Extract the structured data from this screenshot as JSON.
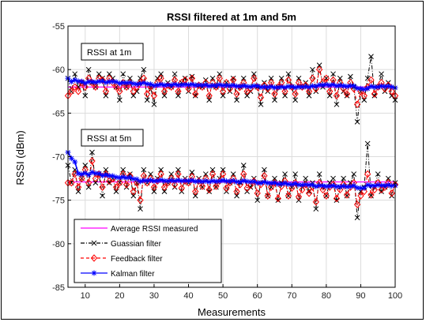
{
  "chart_data": {
    "type": "line",
    "title": "RSSI filtered at 1m and 5m",
    "xlabel": "Measurements",
    "ylabel": "RSSI (dBm)",
    "xlim": [
      5,
      100
    ],
    "ylim": [
      -85,
      -55
    ],
    "xticks": [
      "10",
      "20",
      "30",
      "40",
      "50",
      "60",
      "70",
      "80",
      "90",
      "100"
    ],
    "yticks": [
      "-55",
      "-60",
      "-65",
      "-70",
      "-75",
      "-80",
      "-85"
    ],
    "grid": true,
    "legend_position": "bottom-left",
    "annotations": [
      "RSSI at 1m",
      "RSSI at 5m"
    ],
    "series": [
      {
        "name": "Average RSSI measured",
        "color": "#ff00ff",
        "style": "solid",
        "marker": "none",
        "groups": {
          "1m": -62.0,
          "5m": -72.9
        }
      },
      {
        "name": "Guassian filter",
        "color": "#000000",
        "style": "dashdot",
        "marker": "x-star"
      },
      {
        "name": "Feedback filter",
        "color": "#ff0000",
        "style": "dashed",
        "marker": "diamond"
      },
      {
        "name": "Kalman filter",
        "color": "#0000ff",
        "style": "solid",
        "marker": "asterisk"
      }
    ],
    "x": [
      5,
      6,
      7,
      8,
      9,
      10,
      11,
      12,
      13,
      14,
      15,
      16,
      17,
      18,
      19,
      20,
      21,
      22,
      23,
      24,
      25,
      26,
      27,
      28,
      29,
      30,
      31,
      32,
      33,
      34,
      35,
      36,
      37,
      38,
      39,
      40,
      41,
      42,
      43,
      44,
      45,
      46,
      47,
      48,
      49,
      50,
      51,
      52,
      53,
      54,
      55,
      56,
      57,
      58,
      59,
      60,
      61,
      62,
      63,
      64,
      65,
      66,
      67,
      68,
      69,
      70,
      71,
      72,
      73,
      74,
      75,
      76,
      77,
      78,
      79,
      80,
      81,
      82,
      83,
      84,
      85,
      86,
      87,
      88,
      89,
      90,
      91,
      92,
      93,
      94,
      95,
      96,
      97,
      98,
      99,
      100
    ],
    "data_1m": {
      "gaussian": [
        -61,
        -62.5,
        -60.5,
        -62,
        -61.5,
        -63,
        -60,
        -61.5,
        -62,
        -60.5,
        -61,
        -63,
        -60.5,
        -61,
        -62,
        -63.5,
        -60.5,
        -62,
        -61,
        -63,
        -62.5,
        -61,
        -60,
        -63.5,
        -62,
        -64,
        -61,
        -60.5,
        -63,
        -61.5,
        -62,
        -60.5,
        -63,
        -61.5,
        -61,
        -62.5,
        -60.8,
        -63,
        -61.8,
        -62,
        -61.2,
        -63.5,
        -61,
        -62,
        -60.5,
        -63,
        -61.5,
        -62.5,
        -61,
        -63.5,
        -62,
        -61,
        -63,
        -62.5,
        -60.5,
        -62,
        -64,
        -61.5,
        -62.5,
        -61,
        -63.5,
        -62,
        -61,
        -63,
        -60.5,
        -62,
        -63.5,
        -61,
        -62,
        -61.5,
        -63,
        -60,
        -62.5,
        -59.5,
        -62,
        -61,
        -63,
        -60.5,
        -64,
        -61,
        -62.5,
        -63,
        -60.8,
        -62,
        -66,
        -62.5,
        -63.5,
        -61,
        -58.5,
        -63,
        -62,
        -60.5,
        -62.5,
        -61.5,
        -63,
        -63.5
      ],
      "feedback": [
        -63,
        -62.5,
        -62,
        -62.5,
        -61.5,
        -62,
        -61,
        -61.5,
        -62,
        -61,
        -61.2,
        -62.5,
        -61,
        -61.5,
        -62,
        -62.5,
        -61.5,
        -62,
        -61.5,
        -62.5,
        -62,
        -61.5,
        -61,
        -62.8,
        -62,
        -63,
        -61.5,
        -61,
        -62.5,
        -61.8,
        -62,
        -61.2,
        -62.5,
        -61.5,
        -61.2,
        -62.2,
        -61,
        -62.8,
        -61.8,
        -62,
        -61.5,
        -63,
        -61.5,
        -62,
        -61,
        -62.5,
        -61.5,
        -62.2,
        -61.2,
        -62.8,
        -62,
        -61.5,
        -62.5,
        -62.2,
        -61,
        -62,
        -63.2,
        -61.8,
        -62.2,
        -61.5,
        -62.8,
        -62,
        -61.5,
        -62.5,
        -61.2,
        -62,
        -62.8,
        -61.5,
        -62,
        -61.8,
        -62.5,
        -61,
        -62.2,
        -60,
        -61.5,
        -61,
        -62.5,
        -61.2,
        -63,
        -61.5,
        -62.2,
        -62.8,
        -61.5,
        -62.2,
        -64,
        -62.5,
        -63,
        -62,
        -61.2,
        -62.8,
        -62,
        -61.5,
        -62.2,
        -61.8,
        -62.5,
        -63
      ]
    },
    "data_5m": {
      "gaussian": [
        -71,
        -73,
        -71.5,
        -74,
        -72.5,
        -71,
        -73.5,
        -69.5,
        -73,
        -72,
        -74.5,
        -71.5,
        -73,
        -72.5,
        -74,
        -73,
        -71.5,
        -73.5,
        -72,
        -74.5,
        -73,
        -76,
        -71.5,
        -73,
        -72,
        -74,
        -72.5,
        -71.5,
        -74,
        -73,
        -72,
        -73.5,
        -71.5,
        -74,
        -72.5,
        -73,
        -71.8,
        -74.5,
        -72.5,
        -73.5,
        -72,
        -74,
        -71.5,
        -73.5,
        -72.5,
        -71.5,
        -74,
        -73,
        -72,
        -74.5,
        -73,
        -71,
        -74,
        -73.5,
        -72.5,
        -75,
        -73,
        -71.5,
        -74.5,
        -73.5,
        -72.5,
        -75,
        -73,
        -72,
        -74.5,
        -73.5,
        -72,
        -75,
        -73.5,
        -72.5,
        -74,
        -73,
        -76,
        -72,
        -73.5,
        -74.5,
        -73,
        -72.5,
        -75,
        -73.5,
        -72.5,
        -74.5,
        -73,
        -72,
        -77,
        -74,
        -73.5,
        -68.5,
        -74.5,
        -73.5,
        -72,
        -74,
        -73.5,
        -72.5,
        -74.5,
        -73
      ],
      "feedback": [
        -73,
        -73,
        -72,
        -73.5,
        -72.5,
        -71.5,
        -73,
        -70.5,
        -72.5,
        -72,
        -73.5,
        -72,
        -72.8,
        -72.5,
        -73.5,
        -73,
        -72,
        -73.2,
        -72.2,
        -74,
        -73,
        -75,
        -72.2,
        -73,
        -72.5,
        -73.5,
        -72.8,
        -72,
        -73.5,
        -73,
        -72.5,
        -73.2,
        -72,
        -73.6,
        -72.8,
        -73,
        -72.3,
        -74,
        -72.8,
        -73.4,
        -72.5,
        -73.8,
        -72,
        -73.4,
        -72.8,
        -72,
        -73.6,
        -73,
        -72.5,
        -74,
        -73.2,
        -72,
        -73.6,
        -73.3,
        -72.8,
        -74.2,
        -73.2,
        -72.2,
        -74.5,
        -73.5,
        -73,
        -74.8,
        -73.4,
        -72.8,
        -74.5,
        -73.6,
        -73,
        -74.6,
        -73.8,
        -73.2,
        -74.2,
        -73.5,
        -75.2,
        -73,
        -73.8,
        -74.5,
        -73.5,
        -73.2,
        -74.8,
        -73.8,
        -73.2,
        -74.4,
        -73.5,
        -73,
        -75.5,
        -74.5,
        -74,
        -72,
        -74.4,
        -73.8,
        -73,
        -73.8,
        -73.5,
        -73,
        -74.2,
        -73.2
      ]
    }
  }
}
